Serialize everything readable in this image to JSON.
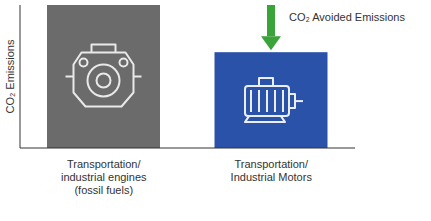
{
  "chart_data": {
    "type": "bar",
    "y_label": "CO₂ Emissions",
    "categories": [
      "Transportation/\nindustrial engines\n(fossil fuels)",
      "Transportation/\nIndustrial Motors"
    ],
    "values": [
      100,
      67
    ],
    "colors": [
      "#6b6b6b",
      "#2a52a8"
    ],
    "ylim": [
      0,
      100
    ],
    "tick_labels": "x",
    "annotation": "CO₂ Avoided Emissions"
  }
}
